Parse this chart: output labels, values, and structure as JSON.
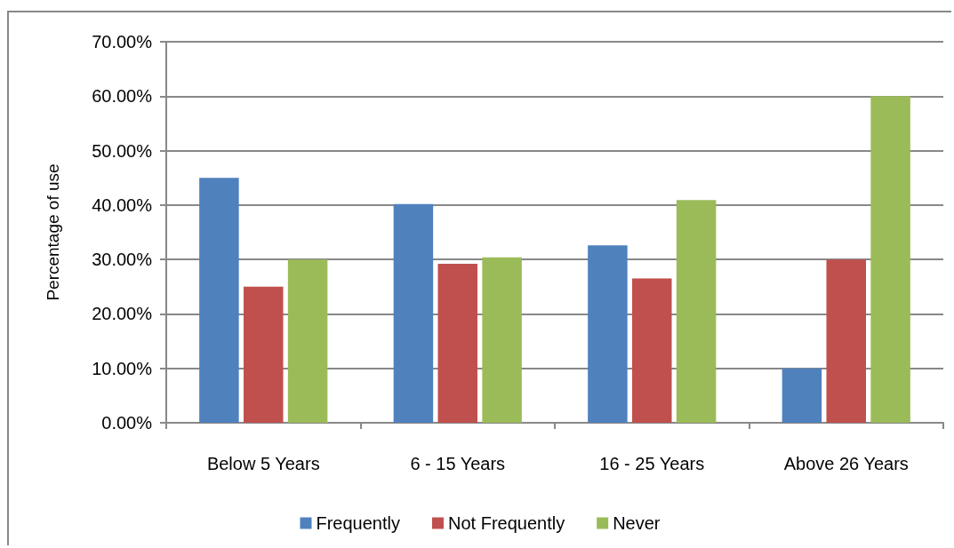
{
  "chart_data": {
    "type": "bar",
    "ylabel": "Percentage of use",
    "categories": [
      "Below 5 Years",
      "6 - 15 Years",
      "16 - 25 Years",
      "Above 26 Years"
    ],
    "series": [
      {
        "name": "Frequently",
        "color": "#4f81bd",
        "values": [
          45,
          40.2,
          32.6,
          10
        ]
      },
      {
        "name": "Not Frequently",
        "color": "#c0504d",
        "values": [
          25,
          29.2,
          26.5,
          30
        ]
      },
      {
        "name": "Never",
        "color": "#9bbb59",
        "values": [
          30,
          30.4,
          40.9,
          60
        ]
      }
    ],
    "ylim": [
      0,
      70
    ],
    "yticks": [
      {
        "value": 0,
        "label": "0.00%"
      },
      {
        "value": 10,
        "label": "10.00%"
      },
      {
        "value": 20,
        "label": "20.00%"
      },
      {
        "value": 30,
        "label": "30.00%"
      },
      {
        "value": 40,
        "label": "40.00%"
      },
      {
        "value": 50,
        "label": "50.00%"
      },
      {
        "value": 60,
        "label": "60.00%"
      },
      {
        "value": 70,
        "label": "70.00%"
      }
    ],
    "grid": "y",
    "legend": "bottom"
  }
}
